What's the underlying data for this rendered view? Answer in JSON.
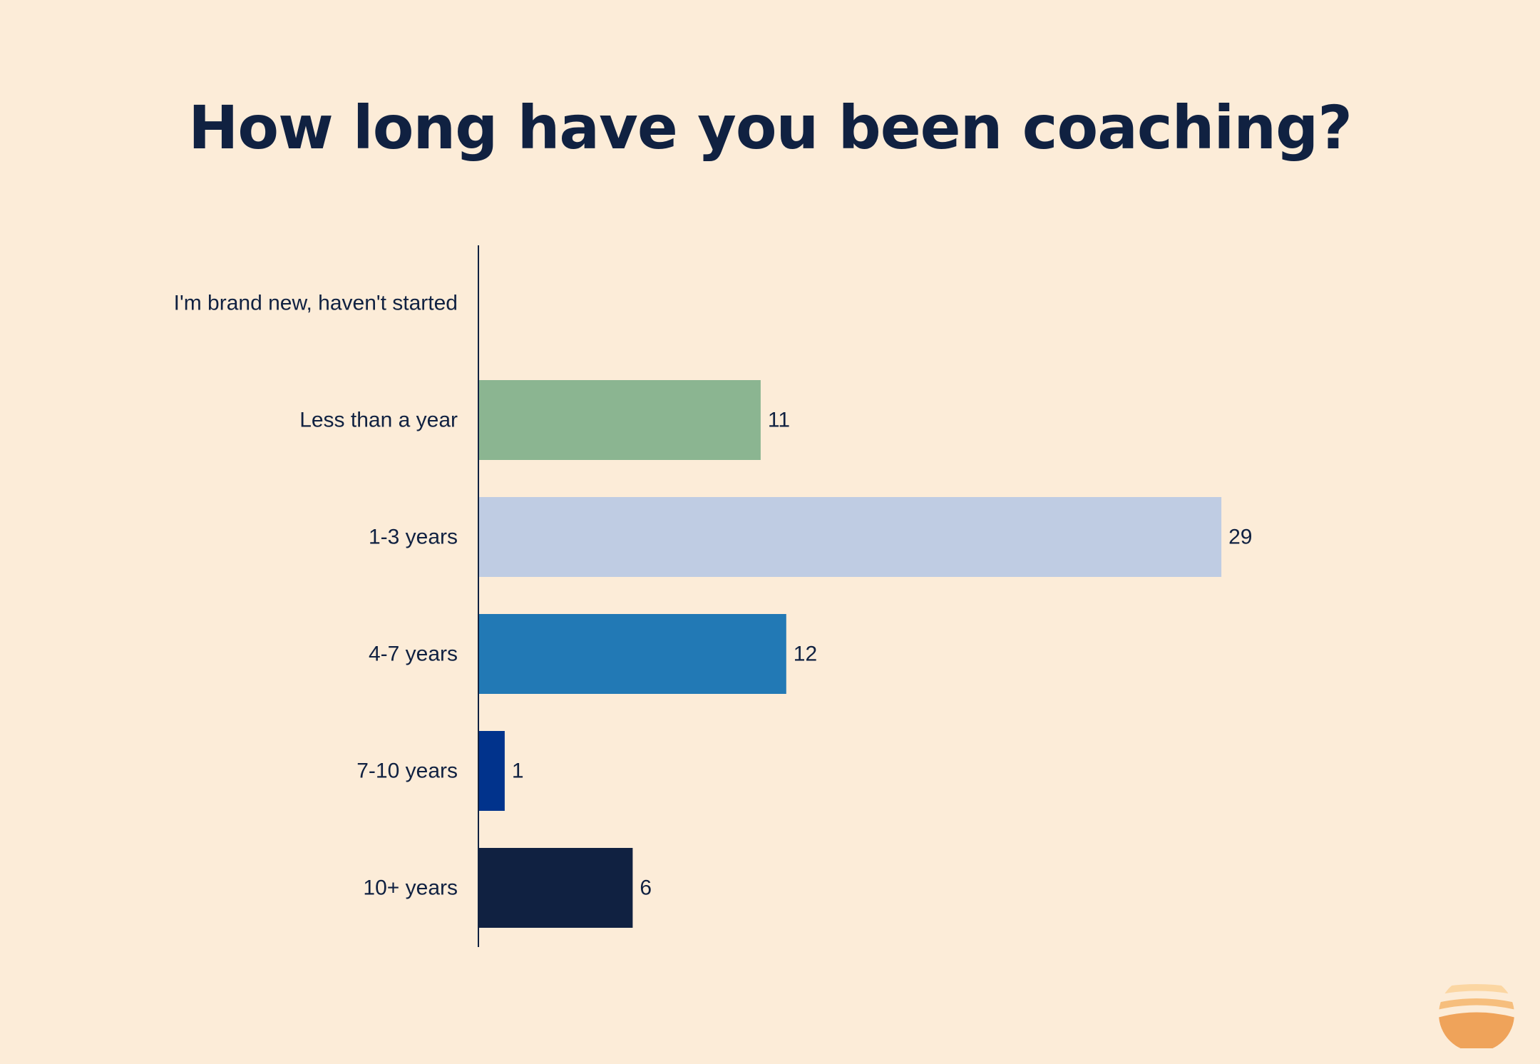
{
  "chart_data": {
    "type": "bar",
    "orientation": "horizontal",
    "title": "How long have you been coaching?",
    "xlabel": "",
    "ylabel": "",
    "categories": [
      "I'm brand new, haven't started",
      "Less than a year",
      "1-3 years",
      "4-7 years",
      "7-10 years",
      "10+ years"
    ],
    "values": [
      0,
      11,
      29,
      12,
      1,
      6
    ],
    "colors": [
      "#8bb591",
      "#8bb591",
      "#bfcce3",
      "#2279b5",
      "#01338c",
      "#102141"
    ],
    "grid": false,
    "legend": "none"
  },
  "logo": {
    "name": "sun-stripes-logo-icon",
    "colors": [
      "#fbd6a2",
      "#f6be7d",
      "#efa35a"
    ]
  }
}
